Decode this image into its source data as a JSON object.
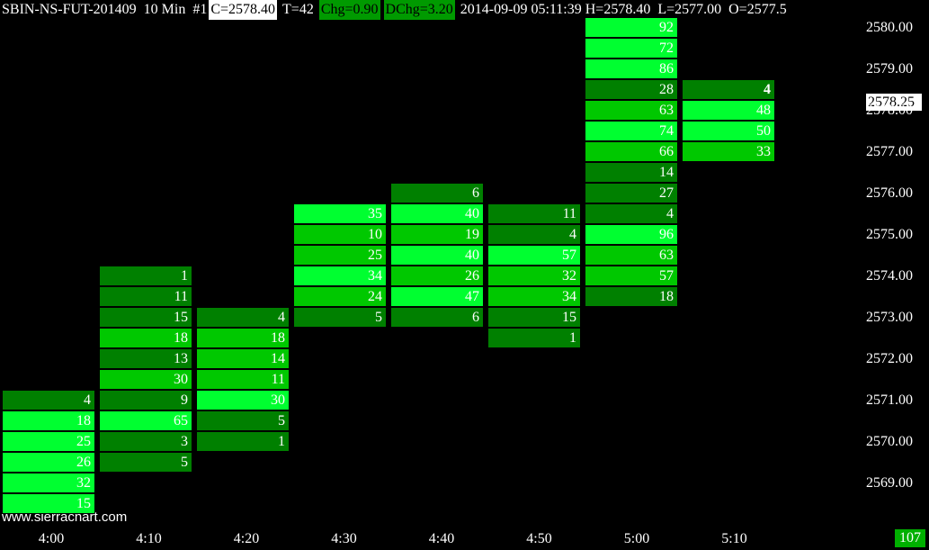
{
  "header": {
    "symbol": "SBIN-NS-FUT-201409",
    "interval": "10 Min",
    "chart_num": "#1",
    "close": "C=2578.40",
    "ticks": "T=42",
    "chg": "Chg=0.90",
    "dchg": "DChg=3.20",
    "datetime": "2014-09-09 05:11:39",
    "high": "H=2578.40",
    "low": "L=2577.00",
    "open": "O=2577.5"
  },
  "watermark": "www.sierrachart.com",
  "current_price": "2578.25",
  "volume_badge": "107",
  "colors": {
    "dark": "#008000",
    "mid": "#00c800",
    "bright": "#00ff30"
  },
  "chart_data": {
    "type": "table",
    "price_axis": [
      "2580.00",
      "2579.00",
      "2578.00",
      "2577.00",
      "2576.00",
      "2575.00",
      "2574.00",
      "2573.00",
      "2572.00",
      "2571.00",
      "2570.00",
      "2569.00"
    ],
    "time_axis": [
      "4:00",
      "4:10",
      "4:20",
      "4:30",
      "4:40",
      "4:50",
      "5:00",
      "5:10"
    ],
    "columns": [
      {
        "time": "4:00",
        "cells": [
          {
            "price": 2571.0,
            "vol": "4",
            "shade": "dark"
          },
          {
            "price": 2570.5,
            "vol": "18",
            "shade": "bright"
          },
          {
            "price": 2570.0,
            "vol": "25",
            "shade": "bright"
          },
          {
            "price": 2569.5,
            "vol": "26",
            "shade": "bright"
          },
          {
            "price": 2569.0,
            "vol": "32",
            "shade": "bright"
          },
          {
            "price": 2568.5,
            "vol": "15",
            "shade": "bright"
          }
        ]
      },
      {
        "time": "4:10",
        "cells": [
          {
            "price": 2574.0,
            "vol": "1",
            "shade": "dark"
          },
          {
            "price": 2573.5,
            "vol": "11",
            "shade": "dark"
          },
          {
            "price": 2573.0,
            "vol": "15",
            "shade": "dark"
          },
          {
            "price": 2572.5,
            "vol": "18",
            "shade": "mid"
          },
          {
            "price": 2572.0,
            "vol": "13",
            "shade": "dark"
          },
          {
            "price": 2571.5,
            "vol": "30",
            "shade": "mid"
          },
          {
            "price": 2571.0,
            "vol": "9",
            "shade": "dark"
          },
          {
            "price": 2570.5,
            "vol": "65",
            "shade": "bright"
          },
          {
            "price": 2570.0,
            "vol": "3",
            "shade": "dark"
          },
          {
            "price": 2569.5,
            "vol": "5",
            "shade": "dark"
          }
        ]
      },
      {
        "time": "4:20",
        "cells": [
          {
            "price": 2573.0,
            "vol": "4",
            "shade": "dark"
          },
          {
            "price": 2572.5,
            "vol": "18",
            "shade": "mid"
          },
          {
            "price": 2572.0,
            "vol": "14",
            "shade": "mid"
          },
          {
            "price": 2571.5,
            "vol": "11",
            "shade": "mid"
          },
          {
            "price": 2571.0,
            "vol": "30",
            "shade": "bright"
          },
          {
            "price": 2570.5,
            "vol": "5",
            "shade": "dark"
          },
          {
            "price": 2570.0,
            "vol": "1",
            "shade": "dark"
          }
        ]
      },
      {
        "time": "4:30",
        "cells": [
          {
            "price": 2575.5,
            "vol": "35",
            "shade": "bright"
          },
          {
            "price": 2575.0,
            "vol": "10",
            "shade": "mid"
          },
          {
            "price": 2574.5,
            "vol": "25",
            "shade": "mid"
          },
          {
            "price": 2574.0,
            "vol": "34",
            "shade": "bright"
          },
          {
            "price": 2573.5,
            "vol": "24",
            "shade": "mid"
          },
          {
            "price": 2573.0,
            "vol": "5",
            "shade": "dark"
          }
        ]
      },
      {
        "time": "4:40",
        "cells": [
          {
            "price": 2576.0,
            "vol": "6",
            "shade": "dark"
          },
          {
            "price": 2575.5,
            "vol": "40",
            "shade": "bright"
          },
          {
            "price": 2575.0,
            "vol": "19",
            "shade": "mid"
          },
          {
            "price": 2574.5,
            "vol": "40",
            "shade": "bright"
          },
          {
            "price": 2574.0,
            "vol": "26",
            "shade": "mid"
          },
          {
            "price": 2573.5,
            "vol": "47",
            "shade": "bright"
          },
          {
            "price": 2573.0,
            "vol": "6",
            "shade": "dark"
          }
        ]
      },
      {
        "time": "4:50",
        "cells": [
          {
            "price": 2575.5,
            "vol": "11",
            "shade": "dark"
          },
          {
            "price": 2575.0,
            "vol": "4",
            "shade": "dark"
          },
          {
            "price": 2574.5,
            "vol": "57",
            "shade": "bright"
          },
          {
            "price": 2574.0,
            "vol": "32",
            "shade": "mid"
          },
          {
            "price": 2573.5,
            "vol": "34",
            "shade": "mid"
          },
          {
            "price": 2573.0,
            "vol": "15",
            "shade": "dark"
          },
          {
            "price": 2572.5,
            "vol": "1",
            "shade": "dark"
          }
        ]
      },
      {
        "time": "5:00",
        "cells": [
          {
            "price": 2580.0,
            "vol": "92",
            "shade": "bright"
          },
          {
            "price": 2579.5,
            "vol": "72",
            "shade": "bright"
          },
          {
            "price": 2579.0,
            "vol": "86",
            "shade": "bright"
          },
          {
            "price": 2578.5,
            "vol": "28",
            "shade": "dark"
          },
          {
            "price": 2578.0,
            "vol": "63",
            "shade": "mid"
          },
          {
            "price": 2577.5,
            "vol": "74",
            "shade": "bright"
          },
          {
            "price": 2577.0,
            "vol": "66",
            "shade": "mid"
          },
          {
            "price": 2576.5,
            "vol": "14",
            "shade": "dark"
          },
          {
            "price": 2576.0,
            "vol": "27",
            "shade": "dark"
          },
          {
            "price": 2575.5,
            "vol": "4",
            "shade": "dark"
          },
          {
            "price": 2575.0,
            "vol": "96",
            "shade": "bright"
          },
          {
            "price": 2574.5,
            "vol": "63",
            "shade": "mid"
          },
          {
            "price": 2574.0,
            "vol": "57",
            "shade": "mid"
          },
          {
            "price": 2573.5,
            "vol": "18",
            "shade": "dark"
          }
        ]
      },
      {
        "time": "5:10",
        "cells": [
          {
            "price": 2578.5,
            "vol": "4",
            "shade": "dark"
          },
          {
            "price": 2578.0,
            "vol": "48",
            "shade": "bright"
          },
          {
            "price": 2577.5,
            "vol": "50",
            "shade": "bright"
          },
          {
            "price": 2577.0,
            "vol": "33",
            "shade": "mid"
          }
        ]
      }
    ]
  }
}
